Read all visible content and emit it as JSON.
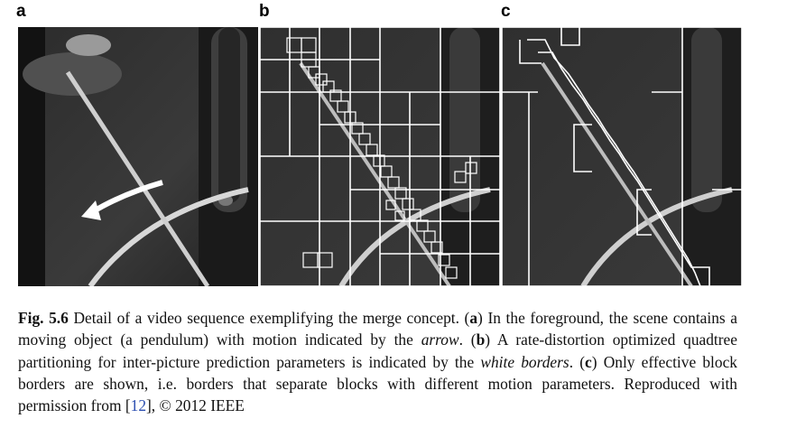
{
  "figure": {
    "panels": [
      {
        "id": "a",
        "label": "a"
      },
      {
        "id": "b",
        "label": "b"
      },
      {
        "id": "c",
        "label": "c"
      }
    ],
    "caption": {
      "fig_label": "Fig. 5.6",
      "text_1": " Detail of a video sequence exemplifying the merge concept. (",
      "a": "a",
      "text_2": ") In the foreground, the scene contains a moving object (a pendulum) with motion indicated by the ",
      "arrow_word": "arrow",
      "text_3": ". (",
      "b": "b",
      "text_4": ") A rate-distortion optimized quadtree partitioning for inter-picture prediction parameters is indicated by the ",
      "white_borders": "white borders",
      "text_5": ". (",
      "c": "c",
      "text_6": ") Only effective block borders are shown, i.e. borders that separate blocks with different motion parameters. Reproduced with permission from [",
      "ref": "12",
      "text_7": "], © 2012 IEEE"
    }
  },
  "colors": {
    "scene_dark": "#1c1c1c",
    "scene_mid": "#3a3a3a",
    "grid_lines": "#ffffff",
    "link": "#2a4db0"
  }
}
